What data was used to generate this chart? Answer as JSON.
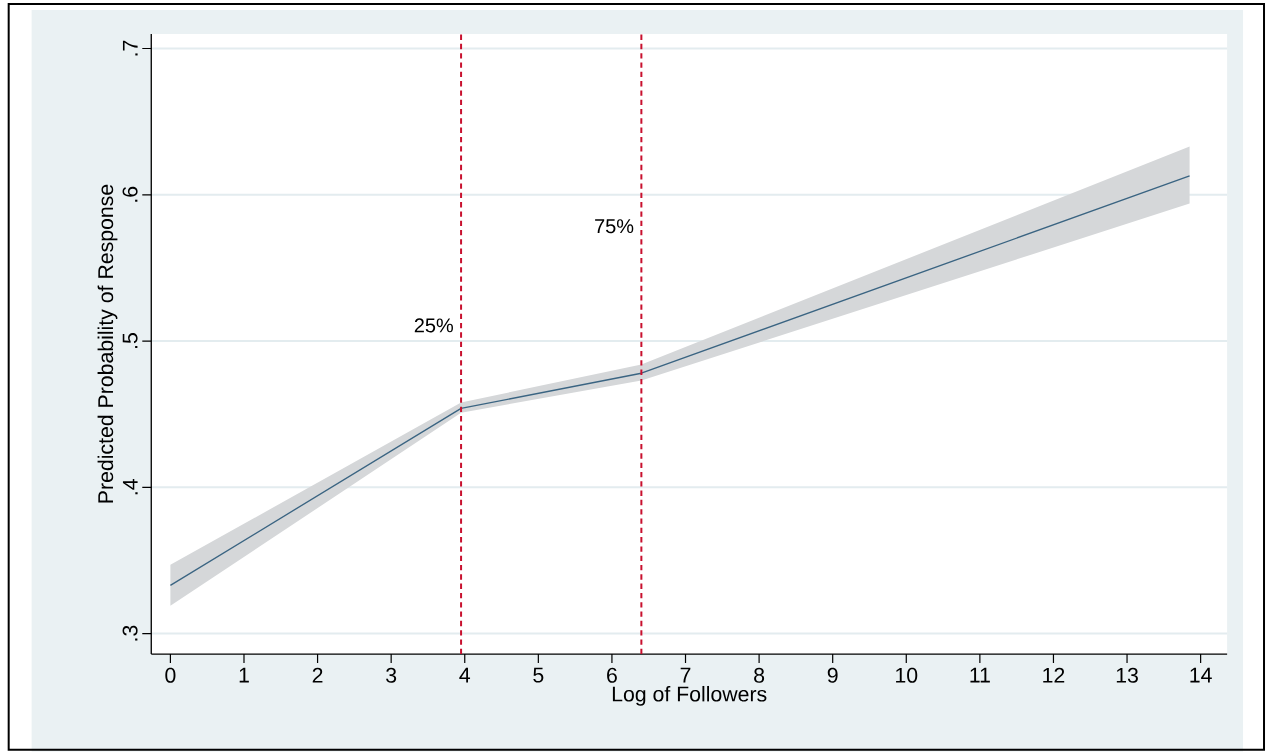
{
  "chart_data": {
    "type": "line",
    "xlabel": "Log of Followers",
    "ylabel": "Predicted Probability of Response",
    "series": [
      {
        "color": "#3a6482",
        "x": [
          0,
          3.95,
          6.4,
          13.85
        ],
        "values": [
          0.333,
          0.454,
          0.478,
          0.613
        ],
        "lower": [
          0.319,
          0.451,
          0.473,
          0.594
        ],
        "upper": [
          0.347,
          0.458,
          0.484,
          0.633
        ]
      }
    ],
    "xlim": [
      -0.26,
      14.36
    ],
    "ylim": [
      0.286,
      0.71
    ],
    "xticks": [
      0,
      1,
      2,
      3,
      4,
      5,
      6,
      7,
      8,
      9,
      10,
      11,
      12,
      13,
      14
    ],
    "yticks": [
      {
        "value": 0.3,
        "label": ".3"
      },
      {
        "value": 0.4,
        "label": ".4"
      },
      {
        "value": 0.5,
        "label": ".5"
      },
      {
        "value": 0.6,
        "label": ".6"
      },
      {
        "value": 0.7,
        "label": ".7"
      }
    ],
    "grid": "y",
    "marker": "none",
    "line_style": "solid",
    "ref_lines": [
      {
        "axis": "x",
        "value": 3.95,
        "color": "#c8102e",
        "line_style": "dashed"
      },
      {
        "axis": "x",
        "value": 6.4,
        "color": "#c8102e",
        "line_style": "dashed"
      }
    ],
    "annotations": [
      "25%",
      "75%"
    ]
  }
}
